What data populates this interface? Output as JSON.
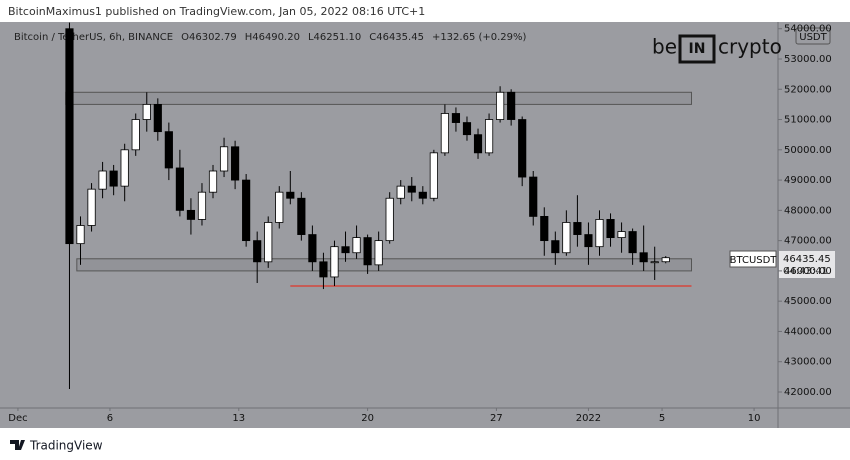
{
  "header": {
    "publisher": "BitcoinMaximus1 published on TradingView.com, Jan 05, 2022 08:16 UTC+1",
    "footer": "TradingView",
    "logo": [
      "be",
      "IN",
      "crypto"
    ]
  },
  "chart_data": {
    "type": "candlestick",
    "symbol_line": [
      "Bitcoin / TetherUS, 6h, BINANCE",
      "O46302.79",
      "H46490.20",
      "L46251.10",
      "C46435.45",
      "+132.65 (+0.29%)"
    ],
    "currency": "USDT",
    "symbol": "BTCUSDT",
    "countdown": "04:43:41",
    "up_color": "#ffffff",
    "down_color": "#000000",
    "wick_color": "#000000",
    "xlim": [
      -0.54,
      41.3
    ],
    "xticks": [
      {
        "value": 0,
        "label": "Dec"
      },
      {
        "value": 5,
        "label": "6"
      },
      {
        "value": 12,
        "label": "13"
      },
      {
        "value": 19,
        "label": "20"
      },
      {
        "value": 26,
        "label": "27"
      },
      {
        "value": 31,
        "label": "2022"
      },
      {
        "value": 35,
        "label": "5"
      },
      {
        "value": 40,
        "label": "10"
      }
    ],
    "ylim": [
      41471,
      54222
    ],
    "yticks": [
      {
        "value": 42000,
        "label": "42000.00"
      },
      {
        "value": 43000,
        "label": "43000.00"
      },
      {
        "value": 44000,
        "label": "44000.00"
      },
      {
        "value": 45000,
        "label": "45000.00"
      },
      {
        "value": 46000,
        "label": "46000.00"
      },
      {
        "value": 47000,
        "label": "47000.00"
      },
      {
        "value": 48000,
        "label": "48000.00"
      },
      {
        "value": 49000,
        "label": "49000.00"
      },
      {
        "value": 50000,
        "label": "50000.00"
      },
      {
        "value": 51000,
        "label": "51000.00"
      },
      {
        "value": 52000,
        "label": "52000.00"
      },
      {
        "value": 53000,
        "label": "53000.00"
      },
      {
        "value": 54000,
        "label": "54000.00"
      }
    ],
    "grid": false,
    "zones": [
      {
        "x": [
          2.6,
          36.6
        ],
        "y": [
          51500,
          51900
        ]
      },
      {
        "x": [
          3.2,
          36.6
        ],
        "y": [
          46000,
          46400
        ]
      }
    ],
    "zone_color": "#8c8d92",
    "support_line": {
      "x": [
        14.8,
        36.6
      ],
      "y": 45500,
      "color": "#e0352b"
    },
    "candles": [
      {
        "x": 2.8,
        "o": 54000,
        "h": 54200,
        "l": 42100,
        "c": 46900
      },
      {
        "x": 3.4,
        "o": 46900,
        "h": 47800,
        "l": 46200,
        "c": 47500
      },
      {
        "x": 4.0,
        "o": 47500,
        "h": 48900,
        "l": 47300,
        "c": 48700
      },
      {
        "x": 4.6,
        "o": 48700,
        "h": 49600,
        "l": 48400,
        "c": 49300
      },
      {
        "x": 5.2,
        "o": 49300,
        "h": 49500,
        "l": 48500,
        "c": 48800
      },
      {
        "x": 5.8,
        "o": 48800,
        "h": 50200,
        "l": 48300,
        "c": 50000
      },
      {
        "x": 6.4,
        "o": 50000,
        "h": 51200,
        "l": 49800,
        "c": 51000
      },
      {
        "x": 7.0,
        "o": 51000,
        "h": 51900,
        "l": 50600,
        "c": 51500
      },
      {
        "x": 7.6,
        "o": 51500,
        "h": 51700,
        "l": 50300,
        "c": 50600
      },
      {
        "x": 8.2,
        "o": 50600,
        "h": 50900,
        "l": 49000,
        "c": 49400
      },
      {
        "x": 8.8,
        "o": 49400,
        "h": 50000,
        "l": 47800,
        "c": 48000
      },
      {
        "x": 9.4,
        "o": 48000,
        "h": 48400,
        "l": 47200,
        "c": 47700
      },
      {
        "x": 10.0,
        "o": 47700,
        "h": 48900,
        "l": 47500,
        "c": 48600
      },
      {
        "x": 10.6,
        "o": 48600,
        "h": 49500,
        "l": 48400,
        "c": 49300
      },
      {
        "x": 11.2,
        "o": 49300,
        "h": 50400,
        "l": 49100,
        "c": 50100
      },
      {
        "x": 11.8,
        "o": 50100,
        "h": 50300,
        "l": 48700,
        "c": 49000
      },
      {
        "x": 12.4,
        "o": 49000,
        "h": 49200,
        "l": 46800,
        "c": 47000
      },
      {
        "x": 13.0,
        "o": 47000,
        "h": 47300,
        "l": 45600,
        "c": 46300
      },
      {
        "x": 13.6,
        "o": 46300,
        "h": 47800,
        "l": 46100,
        "c": 47600
      },
      {
        "x": 14.2,
        "o": 47600,
        "h": 48800,
        "l": 47400,
        "c": 48600
      },
      {
        "x": 14.8,
        "o": 48600,
        "h": 49300,
        "l": 48200,
        "c": 48400
      },
      {
        "x": 15.4,
        "o": 48400,
        "h": 48600,
        "l": 47000,
        "c": 47200
      },
      {
        "x": 16.0,
        "o": 47200,
        "h": 47500,
        "l": 46000,
        "c": 46300
      },
      {
        "x": 16.6,
        "o": 46300,
        "h": 46600,
        "l": 45400,
        "c": 45800
      },
      {
        "x": 17.2,
        "o": 45800,
        "h": 47000,
        "l": 45500,
        "c": 46800
      },
      {
        "x": 17.8,
        "o": 46800,
        "h": 47300,
        "l": 46300,
        "c": 46600
      },
      {
        "x": 18.4,
        "o": 46600,
        "h": 47500,
        "l": 46400,
        "c": 47100
      },
      {
        "x": 19.0,
        "o": 47100,
        "h": 47200,
        "l": 45900,
        "c": 46200
      },
      {
        "x": 19.6,
        "o": 46200,
        "h": 47300,
        "l": 46000,
        "c": 47000
      },
      {
        "x": 20.2,
        "o": 47000,
        "h": 48600,
        "l": 46900,
        "c": 48400
      },
      {
        "x": 20.8,
        "o": 48400,
        "h": 49000,
        "l": 48200,
        "c": 48800
      },
      {
        "x": 21.4,
        "o": 48800,
        "h": 49100,
        "l": 48300,
        "c": 48600
      },
      {
        "x": 22.0,
        "o": 48600,
        "h": 48800,
        "l": 48200,
        "c": 48400
      },
      {
        "x": 22.6,
        "o": 48400,
        "h": 50000,
        "l": 48300,
        "c": 49900
      },
      {
        "x": 23.2,
        "o": 49900,
        "h": 51500,
        "l": 49800,
        "c": 51200
      },
      {
        "x": 23.8,
        "o": 51200,
        "h": 51400,
        "l": 50600,
        "c": 50900
      },
      {
        "x": 24.4,
        "o": 50900,
        "h": 51100,
        "l": 50300,
        "c": 50500
      },
      {
        "x": 25.0,
        "o": 50500,
        "h": 50700,
        "l": 49700,
        "c": 49900
      },
      {
        "x": 25.6,
        "o": 49900,
        "h": 51200,
        "l": 49800,
        "c": 51000
      },
      {
        "x": 26.2,
        "o": 51000,
        "h": 52100,
        "l": 50900,
        "c": 51900
      },
      {
        "x": 26.8,
        "o": 51900,
        "h": 52000,
        "l": 50800,
        "c": 51000
      },
      {
        "x": 27.4,
        "o": 51000,
        "h": 51100,
        "l": 48800,
        "c": 49100
      },
      {
        "x": 28.0,
        "o": 49100,
        "h": 49300,
        "l": 47500,
        "c": 47800
      },
      {
        "x": 28.6,
        "o": 47800,
        "h": 48100,
        "l": 46500,
        "c": 47000
      },
      {
        "x": 29.2,
        "o": 47000,
        "h": 47300,
        "l": 46200,
        "c": 46600
      },
      {
        "x": 29.8,
        "o": 46600,
        "h": 48000,
        "l": 46500,
        "c": 47600
      },
      {
        "x": 30.4,
        "o": 47600,
        "h": 48500,
        "l": 46800,
        "c": 47200
      },
      {
        "x": 31.0,
        "o": 47200,
        "h": 47600,
        "l": 46200,
        "c": 46800
      },
      {
        "x": 31.6,
        "o": 46800,
        "h": 48000,
        "l": 46500,
        "c": 47700
      },
      {
        "x": 32.2,
        "o": 47700,
        "h": 47900,
        "l": 46800,
        "c": 47100
      },
      {
        "x": 32.8,
        "o": 47100,
        "h": 47600,
        "l": 46600,
        "c": 47300
      },
      {
        "x": 33.4,
        "o": 47300,
        "h": 47400,
        "l": 46200,
        "c": 46600
      },
      {
        "x": 34.0,
        "o": 46600,
        "h": 47500,
        "l": 46000,
        "c": 46300
      },
      {
        "x": 34.6,
        "o": 46300,
        "h": 46800,
        "l": 45700,
        "c": 46302.79
      },
      {
        "x": 35.2,
        "o": 46302.79,
        "h": 46490.2,
        "l": 46251.1,
        "c": 46435.45
      }
    ]
  }
}
